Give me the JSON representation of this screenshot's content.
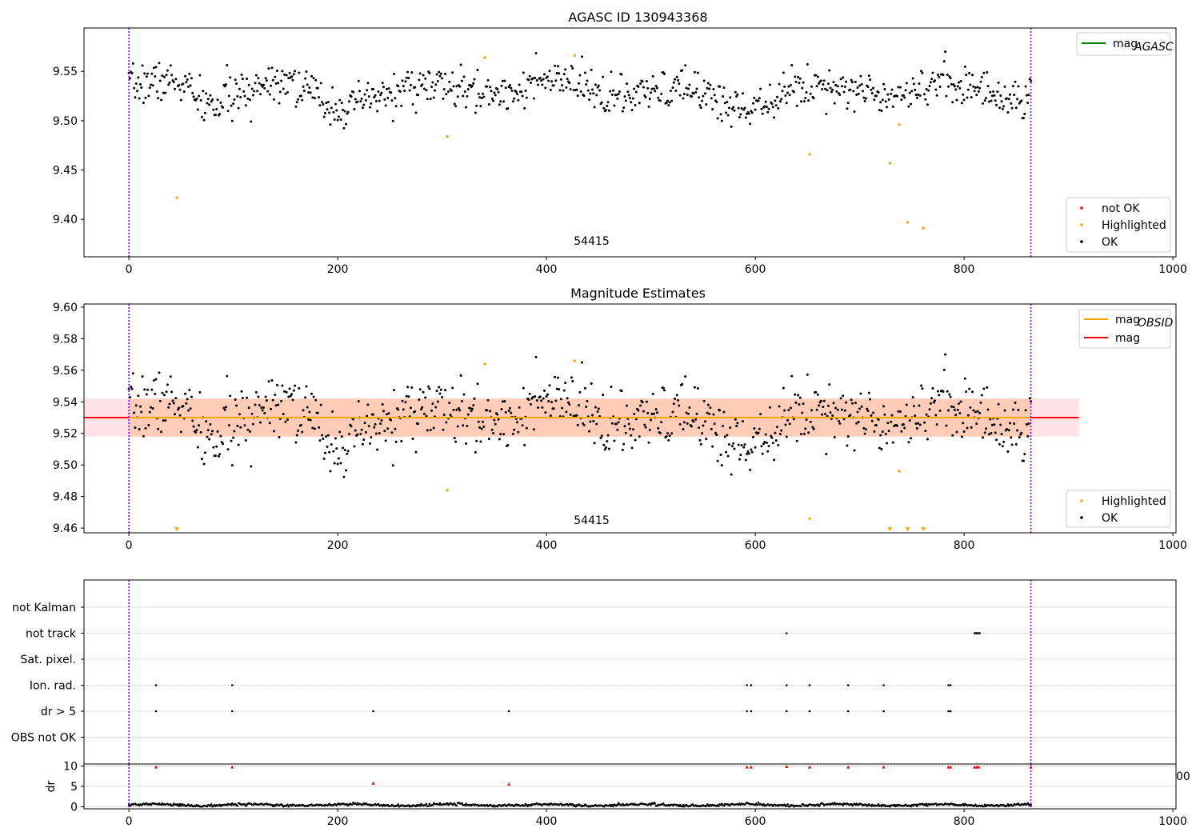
{
  "chart_data": [
    {
      "type": "scatter",
      "title": "AGASC ID 130943368",
      "xlim": [
        -43,
        1003
      ],
      "ylim": [
        9.362,
        9.594
      ],
      "xticks": [
        0,
        200,
        400,
        600,
        800,
        1000
      ],
      "yticks": [
        9.4,
        9.45,
        9.5,
        9.55
      ],
      "ytick_labels": [
        "9.40",
        "9.45",
        "9.50",
        "9.55"
      ],
      "vlines": [
        0,
        864
      ],
      "annotation": {
        "text": "54415",
        "x": 430,
        "y": 9.366
      },
      "legend_upper": {
        "location": "upper right",
        "entries": [
          {
            "label": "mag",
            "subscript": "AGASC",
            "color": "#008000"
          }
        ]
      },
      "legend_lower": {
        "location": "lower right",
        "entries": [
          {
            "label": "not OK",
            "color": "#ff0000"
          },
          {
            "label": "Highlighted",
            "color": "#ffa500"
          },
          {
            "label": "OK",
            "color": "#000000"
          }
        ]
      },
      "series": [
        {
          "name": "OK",
          "color": "#000000",
          "generated": true,
          "x_range": [
            0,
            864
          ],
          "y_center": 9.53,
          "y_spread": 0.01
        },
        {
          "name": "Highlighted",
          "color": "#ffa500",
          "x": [
            46,
            305,
            341,
            427,
            652,
            729,
            738,
            746,
            761
          ],
          "y": [
            9.422,
            9.484,
            9.564,
            9.566,
            9.466,
            9.457,
            9.496,
            9.397,
            9.391
          ]
        }
      ]
    },
    {
      "type": "scatter",
      "title": "Magnitude Estimates",
      "xlim": [
        -43,
        1003
      ],
      "ylim": [
        9.457,
        9.602
      ],
      "xticks": [
        0,
        200,
        400,
        600,
        800,
        1000
      ],
      "yticks": [
        9.46,
        9.48,
        9.5,
        9.52,
        9.54,
        9.56,
        9.58,
        9.6
      ],
      "ytick_labels": [
        "9.46",
        "9.48",
        "9.50",
        "9.52",
        "9.54",
        "9.56",
        "9.58",
        "9.60"
      ],
      "vlines": [
        0,
        864
      ],
      "annotation": {
        "text": "54415",
        "x": 430,
        "y": 9.462
      },
      "bands": [
        {
          "x": [
            -43,
            910
          ],
          "y": [
            9.518,
            9.542
          ],
          "color": "#ffc0c8",
          "opacity": 0.45
        },
        {
          "x": [
            0,
            864
          ],
          "y": [
            9.518,
            9.542
          ],
          "color": "#ffa060",
          "opacity": 0.35
        }
      ],
      "lines": [
        {
          "name": "mag",
          "color": "#ff0000",
          "x": [
            -43,
            910
          ],
          "y": 9.53
        },
        {
          "name": "mag_OBSID",
          "color": "#ffa500",
          "x": [
            0,
            864
          ],
          "y": 9.53
        }
      ],
      "legend_upper": {
        "location": "upper right",
        "entries": [
          {
            "label": "mag",
            "subscript": "OBSID",
            "color": "#ffa500"
          },
          {
            "label": "mag",
            "subscript": "",
            "color": "#ff0000"
          }
        ]
      },
      "legend_lower": {
        "location": "lower right",
        "entries": [
          {
            "label": "Highlighted",
            "color": "#ffa500"
          },
          {
            "label": "OK",
            "color": "#000000"
          }
        ]
      },
      "series": [
        {
          "name": "OK",
          "color": "#000000",
          "generated": true,
          "x_range": [
            0,
            864
          ],
          "y_center": 9.53,
          "y_spread": 0.01
        },
        {
          "name": "Highlighted",
          "color": "#ffa500",
          "x": [
            305,
            341,
            427,
            652,
            738
          ],
          "y": [
            9.484,
            9.564,
            9.566,
            9.466,
            9.496
          ]
        },
        {
          "name": "Highlighted (below axis)",
          "color": "#ffa500",
          "marker": "triangle-down",
          "x": [
            46,
            729,
            746,
            761
          ],
          "y": [
            9.4595,
            9.4595,
            9.4595,
            9.4595
          ]
        }
      ]
    },
    {
      "type": "scatter",
      "title": "",
      "xlim": [
        -43,
        1003
      ],
      "categories": [
        "not Kalman",
        "not track",
        "Sat. pixel.",
        "Ion. rad.",
        "dr > 5",
        "OBS not OK"
      ],
      "flags": [
        {
          "category": "not track",
          "x": [
            630,
            810,
            811,
            812,
            813,
            814,
            815
          ]
        },
        {
          "category": "Ion. rad.",
          "x": [
            26,
            99,
            592,
            596,
            630,
            652,
            689,
            723,
            785,
            787
          ]
        },
        {
          "category": "dr > 5",
          "x": [
            26,
            99,
            234,
            364,
            592,
            596,
            630,
            652,
            689,
            723,
            785,
            787
          ]
        }
      ],
      "vlines": [
        0,
        864
      ]
    },
    {
      "type": "scatter",
      "title": "",
      "xlim": [
        -43,
        1003
      ],
      "ylim": [
        -0.5,
        10.5
      ],
      "ylabel": "dr",
      "xticks": [
        0,
        200,
        400,
        600,
        800,
        1000
      ],
      "yticks": [
        0,
        5,
        10
      ],
      "ytick_labels": [
        "0",
        "5",
        "10"
      ],
      "vlines": [
        0,
        864
      ],
      "clipped_ticklabel": "00",
      "series": [
        {
          "name": "OK",
          "color": "#000000",
          "generated": true,
          "x_range": [
            0,
            864
          ],
          "y_center": 0.45,
          "y_spread": 0.15
        },
        {
          "name": "not OK",
          "color": "#ff0000",
          "x": [
            26,
            99,
            234,
            364,
            592,
            596,
            630,
            652,
            689,
            723,
            785,
            787,
            810,
            812,
            814,
            864
          ],
          "y": [
            9.8,
            9.8,
            5.8,
            5.6,
            9.8,
            9.8,
            9.9,
            9.8,
            9.8,
            9.8,
            9.8,
            9.8,
            9.8,
            9.8,
            9.8,
            9.8
          ]
        }
      ]
    }
  ]
}
